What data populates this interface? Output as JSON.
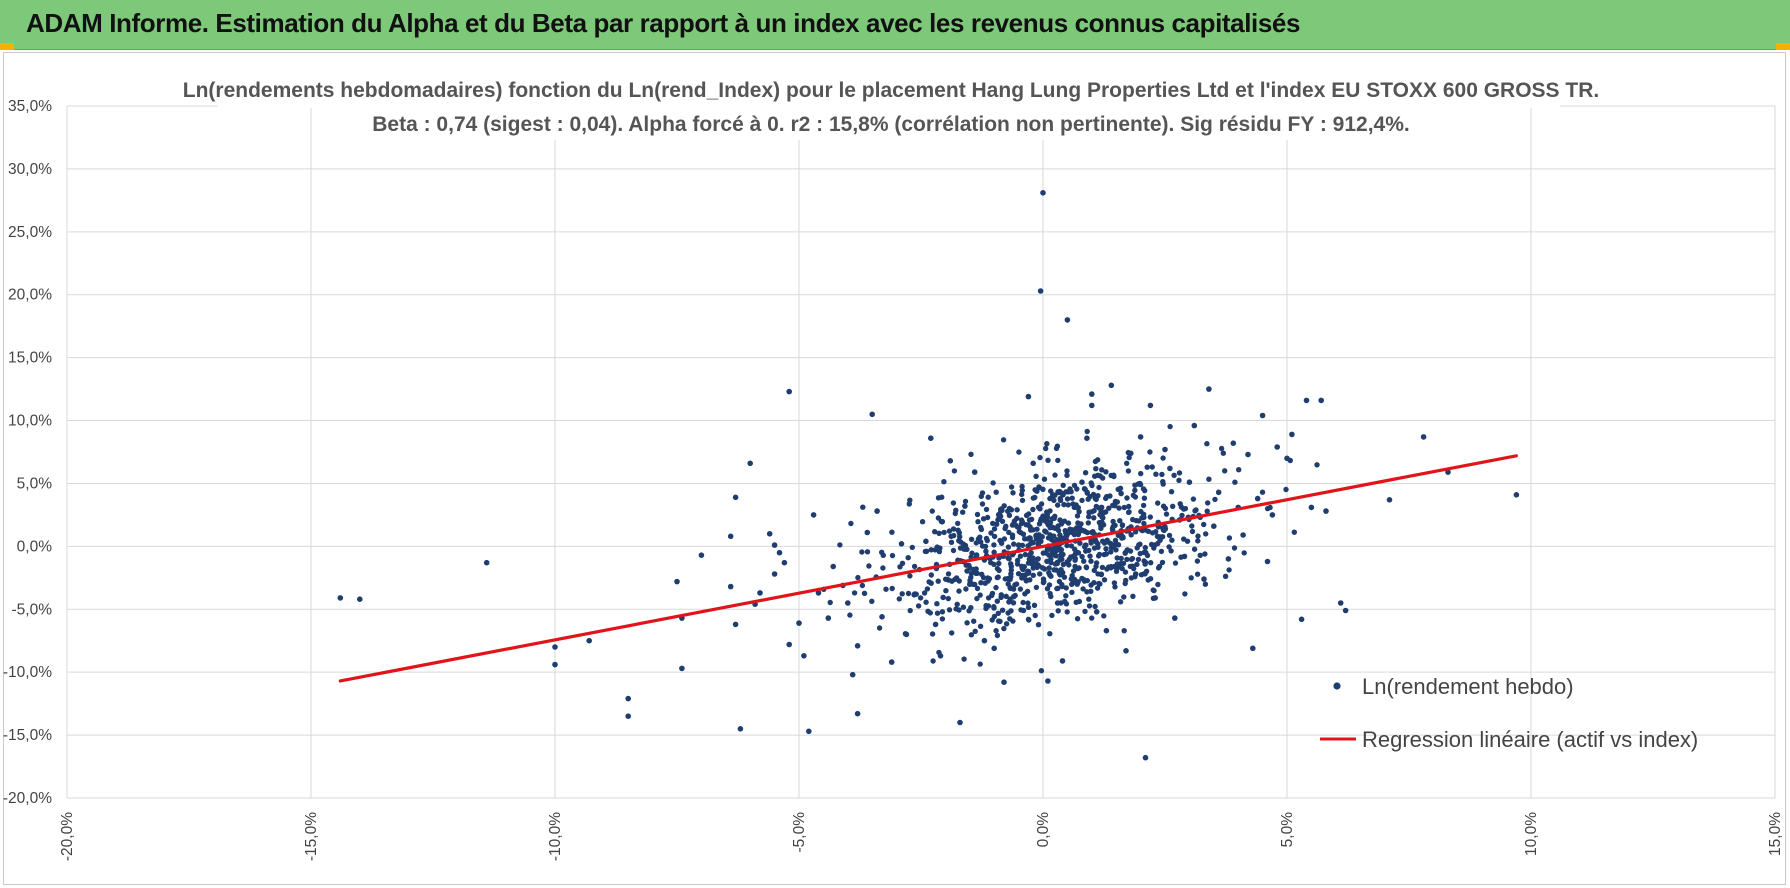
{
  "banner": {
    "title": "ADAM Informe. Estimation du Alpha et du Beta par rapport à un index avec les revenus connus capitalisés"
  },
  "colors": {
    "banner": "#7ec87a",
    "points": "#1f3d6e",
    "regression": "#e0141a",
    "grid": "#d9d9d9"
  },
  "chart_data": {
    "type": "scatter",
    "title_line1": "Ln(rendements hebdomadaires) fonction du Ln(rend_Index) pour le placement Hang Lung Properties Ltd et l'index EU STOXX 600 GROSS TR.",
    "title_line2": "Beta : 0,74 (sigest : 0,04).  Alpha forcé à 0. r2 : 15,8% (corrélation non pertinente). Sig résidu FY : 912,4%.",
    "xlabel": "",
    "ylabel": "",
    "xlim": [
      -0.2,
      0.15
    ],
    "ylim": [
      -0.2,
      0.35
    ],
    "x_ticks": [
      -0.2,
      -0.15,
      -0.1,
      -0.05,
      0.0,
      0.05,
      0.1,
      0.15
    ],
    "x_tick_labels": [
      "-20,0%",
      "-15,0%",
      "-10,0%",
      "-5,0%",
      "0,0%",
      "5,0%",
      "10,0%",
      "15,0%"
    ],
    "y_ticks": [
      -0.2,
      -0.15,
      -0.1,
      -0.05,
      0.0,
      0.05,
      0.1,
      0.15,
      0.2,
      0.25,
      0.3,
      0.35
    ],
    "y_tick_labels": [
      "-20,0%",
      "-15,0%",
      "-10,0%",
      "-5,0%",
      "0,0%",
      "5,0%",
      "10,0%",
      "15,0%",
      "20,0%",
      "25,0%",
      "30,0%",
      "35,0%"
    ],
    "grid": true,
    "legend_position": "bottom-right",
    "series": [
      {
        "name": "Ln(rendement hebdo)",
        "kind": "scatter",
        "points": [
          [
            -0.144,
            -0.041
          ],
          [
            -0.14,
            -0.042
          ],
          [
            -0.114,
            -0.013
          ],
          [
            -0.1,
            -0.08
          ],
          [
            -0.1,
            -0.094
          ],
          [
            -0.093,
            -0.075
          ],
          [
            -0.085,
            -0.121
          ],
          [
            -0.085,
            -0.135
          ],
          [
            -0.075,
            -0.028
          ],
          [
            -0.074,
            -0.057
          ],
          [
            -0.074,
            -0.097
          ],
          [
            -0.07,
            -0.007
          ],
          [
            -0.064,
            -0.032
          ],
          [
            -0.064,
            0.008
          ],
          [
            -0.063,
            -0.062
          ],
          [
            -0.063,
            0.039
          ],
          [
            -0.062,
            -0.145
          ],
          [
            -0.06,
            0.066
          ],
          [
            -0.059,
            -0.046
          ],
          [
            -0.058,
            -0.037
          ],
          [
            -0.056,
            0.01
          ],
          [
            -0.055,
            -0.022
          ],
          [
            -0.055,
            0.001
          ],
          [
            -0.054,
            -0.005
          ],
          [
            -0.053,
            -0.013
          ],
          [
            -0.052,
            0.123
          ],
          [
            -0.052,
            -0.078
          ],
          [
            -0.05,
            -0.061
          ],
          [
            -0.049,
            -0.087
          ],
          [
            -0.048,
            -0.147
          ],
          [
            -0.047,
            0.025
          ],
          [
            -0.046,
            -0.037
          ],
          [
            -0.044,
            -0.057
          ],
          [
            -0.043,
            -0.016
          ],
          [
            -0.041,
            -0.031
          ],
          [
            -0.04,
            -0.045
          ],
          [
            -0.039,
            -0.102
          ],
          [
            -0.038,
            -0.079
          ],
          [
            -0.038,
            -0.133
          ],
          [
            -0.036,
            0.011
          ],
          [
            -0.035,
            0.105
          ],
          [
            -0.034,
            0.028
          ],
          [
            -0.033,
            -0.056
          ],
          [
            -0.031,
            -0.092
          ],
          [
            -0.029,
            0.002
          ],
          [
            -0.028,
            -0.07
          ],
          [
            -0.026,
            -0.038
          ],
          [
            -0.024,
            0.004
          ],
          [
            -0.023,
            0.086
          ],
          [
            -0.022,
            -0.062
          ],
          [
            -0.021,
            -0.087
          ],
          [
            -0.019,
            0.068
          ],
          [
            -0.017,
            -0.14
          ],
          [
            -0.016,
            0.032
          ],
          [
            -0.014,
            0.059
          ],
          [
            -0.012,
            -0.075
          ],
          [
            -0.01,
            -0.081
          ],
          [
            -0.009,
            0.022
          ],
          [
            -0.008,
            -0.108
          ],
          [
            -0.006,
            -0.04
          ],
          [
            -0.005,
            0.001
          ],
          [
            -0.004,
            -0.051
          ],
          [
            -0.003,
            0.119
          ],
          [
            -0.002,
            0.066
          ],
          [
            -0.001,
            -0.01
          ],
          [
            -0.0005,
            0.203
          ],
          [
            0.0,
            0.281
          ],
          [
            0.0,
            0.024
          ],
          [
            0.001,
            -0.107
          ],
          [
            0.002,
            0.041
          ],
          [
            0.003,
            -0.045
          ],
          [
            0.004,
            -0.091
          ],
          [
            0.005,
            0.18
          ],
          [
            0.006,
            0.011
          ],
          [
            0.007,
            -0.03
          ],
          [
            0.008,
            0.051
          ],
          [
            0.009,
            0.086
          ],
          [
            0.01,
            0.121
          ],
          [
            0.01,
            0.112
          ],
          [
            0.011,
            -0.052
          ],
          [
            0.012,
            0.031
          ],
          [
            0.013,
            -0.067
          ],
          [
            0.014,
            0.128
          ],
          [
            0.015,
            0.002
          ],
          [
            0.016,
            0.042
          ],
          [
            0.017,
            -0.083
          ],
          [
            0.018,
            0.074
          ],
          [
            0.019,
            -0.022
          ],
          [
            0.02,
            0.087
          ],
          [
            0.021,
            -0.168
          ],
          [
            0.022,
            0.112
          ],
          [
            0.023,
            -0.041
          ],
          [
            0.024,
            0.005
          ],
          [
            0.025,
            0.077
          ],
          [
            0.026,
            0.062
          ],
          [
            0.027,
            -0.057
          ],
          [
            0.028,
            0.021
          ],
          [
            0.029,
            -0.008
          ],
          [
            0.03,
            0.051
          ],
          [
            0.031,
            0.096
          ],
          [
            0.033,
            -0.026
          ],
          [
            0.034,
            0.125
          ],
          [
            0.035,
            0.016
          ],
          [
            0.036,
            0.043
          ],
          [
            0.038,
            -0.01
          ],
          [
            0.039,
            0.082
          ],
          [
            0.04,
            0.031
          ],
          [
            0.041,
            0.009
          ],
          [
            0.042,
            0.073
          ],
          [
            0.043,
            -0.081
          ],
          [
            0.044,
            0.038
          ],
          [
            0.045,
            0.104
          ],
          [
            0.046,
            -0.012
          ],
          [
            0.047,
            0.025
          ],
          [
            0.048,
            0.079
          ],
          [
            0.05,
            0.07
          ],
          [
            0.051,
            0.089
          ],
          [
            0.053,
            -0.058
          ],
          [
            0.054,
            0.116
          ],
          [
            0.055,
            0.031
          ],
          [
            0.057,
            0.116
          ],
          [
            0.058,
            0.028
          ],
          [
            0.061,
            -0.045
          ],
          [
            0.062,
            -0.051
          ],
          [
            0.071,
            0.037
          ],
          [
            0.078,
            0.087
          ],
          [
            0.083,
            0.059
          ],
          [
            0.097,
            0.041
          ]
        ]
      },
      {
        "name": "Regression linéaire (actif vs index)",
        "kind": "line",
        "x": [
          -0.144,
          0.097
        ],
        "y": [
          -0.107,
          0.072
        ]
      }
    ]
  }
}
